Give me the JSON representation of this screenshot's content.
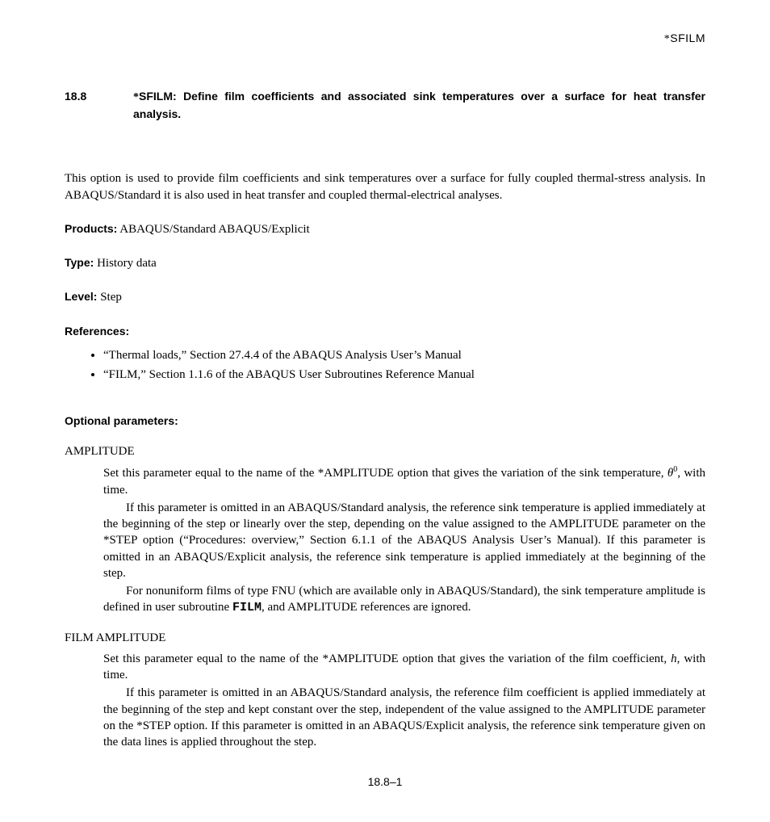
{
  "header": {
    "top_right": "*SFILM"
  },
  "section": {
    "number": "18.8",
    "title_pre": "*SFILM:   ",
    "title_body": "Define film coefficients and associated sink temperatures over a surface for heat transfer analysis."
  },
  "intro": "This option is used to provide film coefficients and sink temperatures over a surface for fully coupled thermal-stress analysis. In ABAQUS/Standard it is also used in heat transfer and coupled thermal-electrical analyses.",
  "products": {
    "label": "Products:",
    "value": "  ABAQUS/Standard    ABAQUS/Explicit"
  },
  "type": {
    "label": "Type:",
    "value": "  History data"
  },
  "level": {
    "label": "Level:",
    "value": "  Step"
  },
  "references": {
    "label": "References:",
    "items": [
      "“Thermal loads,” Section 27.4.4 of the ABAQUS Analysis User’s Manual",
      "“FILM,” Section 1.1.6 of the ABAQUS User Subroutines Reference Manual"
    ]
  },
  "optional": {
    "label": "Optional parameters:"
  },
  "amplitude": {
    "name": "AMPLITUDE",
    "p1_pre": "Set this parameter equal to the name of the *AMPLITUDE option that gives the variation of the sink temperature, ",
    "p1_post": ", with time.",
    "p2": "If this parameter is omitted in an ABAQUS/Standard analysis, the reference sink temperature is applied immediately at the beginning of the step or linearly over the step, depending on the value assigned to the AMPLITUDE parameter on the *STEP option (“Procedures: overview,” Section 6.1.1 of the ABAQUS Analysis User’s Manual). If this parameter is omitted in an ABAQUS/Explicit analysis, the reference sink temperature is applied immediately at the beginning of the step.",
    "p3_pre": "For nonuniform films of type FNU (which are available only in ABAQUS/Standard), the sink temperature amplitude is defined in user subroutine ",
    "p3_code": "FILM",
    "p3_post": ", and AMPLITUDE references are ignored."
  },
  "film_amp": {
    "name": "FILM AMPLITUDE",
    "p1_pre": "Set this parameter equal to the name of the *AMPLITUDE option that gives the variation of the film coefficient, ",
    "p1_post": ", with time.",
    "p2": "If this parameter is omitted in an ABAQUS/Standard analysis, the reference film coefficient is applied immediately at the beginning of the step and kept constant over the step, independent of the value assigned to the AMPLITUDE parameter on the *STEP option. If this parameter is omitted in an ABAQUS/Explicit analysis, the reference sink temperature given on the data lines is applied throughout the step."
  },
  "footer": {
    "page": "18.8–1"
  }
}
